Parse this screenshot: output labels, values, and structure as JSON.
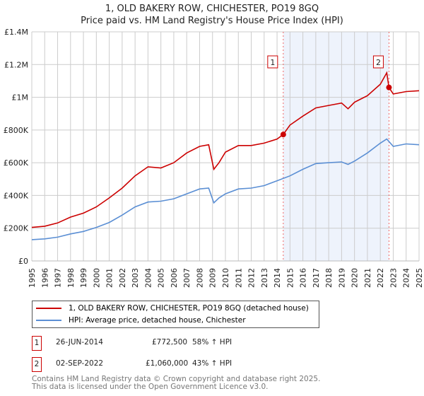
{
  "chart_data": {
    "type": "line",
    "title": "1, OLD BAKERY ROW, CHICHESTER, PO19 8GQ",
    "subtitle": "Price paid vs. HM Land Registry's House Price Index (HPI)",
    "ylim": [
      0,
      1400000
    ],
    "xlim": [
      1995,
      2025
    ],
    "y_ticks": [
      {
        "v": 0,
        "label": "£0"
      },
      {
        "v": 200000,
        "label": "£200K"
      },
      {
        "v": 400000,
        "label": "£400K"
      },
      {
        "v": 600000,
        "label": "£600K"
      },
      {
        "v": 800000,
        "label": "£800K"
      },
      {
        "v": 1000000,
        "label": "£1M"
      },
      {
        "v": 1200000,
        "label": "£1.2M"
      },
      {
        "v": 1400000,
        "label": "£1.4M"
      }
    ],
    "x_ticks": [
      "1995",
      "1996",
      "1997",
      "1998",
      "1999",
      "2000",
      "2001",
      "2002",
      "2003",
      "2004",
      "2005",
      "2006",
      "2007",
      "2008",
      "2009",
      "2010",
      "2011",
      "2012",
      "2013",
      "2014",
      "2015",
      "2016",
      "2017",
      "2018",
      "2019",
      "2020",
      "2021",
      "2022",
      "2023",
      "2024",
      "2025"
    ],
    "grid": true,
    "shaded_range": [
      2014.48,
      2022.67
    ],
    "series": [
      {
        "name": "1, OLD BAKERY ROW, CHICHESTER, PO19 8GQ (detached house)",
        "color": "#cc0000",
        "x": [
          1995,
          1996,
          1997,
          1998,
          1999,
          2000,
          2001,
          2002,
          2003,
          2004,
          2005,
          2006,
          2007,
          2008,
          2008.7,
          2009.1,
          2009.5,
          2010,
          2011,
          2012,
          2013,
          2014,
          2014.48,
          2015,
          2016,
          2017,
          2018,
          2019,
          2019.5,
          2020,
          2021,
          2022,
          2022.5,
          2022.67,
          2023,
          2024,
          2025
        ],
        "values": [
          205000,
          212000,
          232000,
          268000,
          292000,
          330000,
          385000,
          445000,
          520000,
          575000,
          568000,
          600000,
          660000,
          700000,
          710000,
          560000,
          600000,
          665000,
          705000,
          705000,
          720000,
          745000,
          772500,
          830000,
          885000,
          935000,
          950000,
          965000,
          930000,
          970000,
          1010000,
          1080000,
          1150000,
          1060000,
          1020000,
          1035000,
          1040000
        ]
      },
      {
        "name": "HPI: Average price, detached house, Chichester",
        "color": "#5b8fd4",
        "x": [
          1995,
          1996,
          1997,
          1998,
          1999,
          2000,
          2001,
          2002,
          2003,
          2004,
          2005,
          2006,
          2007,
          2008,
          2008.7,
          2009.1,
          2009.5,
          2010,
          2011,
          2012,
          2013,
          2014,
          2015,
          2016,
          2017,
          2018,
          2019,
          2019.5,
          2020,
          2021,
          2022,
          2022.5,
          2023,
          2024,
          2025
        ],
        "values": [
          130000,
          135000,
          145000,
          165000,
          180000,
          205000,
          235000,
          280000,
          330000,
          360000,
          365000,
          380000,
          410000,
          440000,
          445000,
          355000,
          385000,
          410000,
          440000,
          445000,
          460000,
          490000,
          520000,
          560000,
          595000,
          600000,
          605000,
          590000,
          610000,
          660000,
          720000,
          745000,
          700000,
          715000,
          710000
        ]
      }
    ],
    "markers": [
      {
        "id": "1",
        "x": 2014.48,
        "value": 772500
      },
      {
        "id": "2",
        "x": 2022.67,
        "value": 1060000
      }
    ]
  },
  "legend": {
    "red": "1, OLD BAKERY ROW, CHICHESTER, PO19 8GQ (detached house)",
    "blue": "HPI: Average price, detached house, Chichester"
  },
  "transactions": [
    {
      "id": "1",
      "date": "26-JUN-2014",
      "price": "£772,500",
      "hpi": "58% ↑ HPI"
    },
    {
      "id": "2",
      "date": "02-SEP-2022",
      "price": "£1,060,000",
      "hpi": "43% ↑ HPI"
    }
  ],
  "footer": {
    "line1": "Contains HM Land Registry data © Crown copyright and database right 2025.",
    "line2": "This data is licensed under the Open Government Licence v3.0."
  }
}
